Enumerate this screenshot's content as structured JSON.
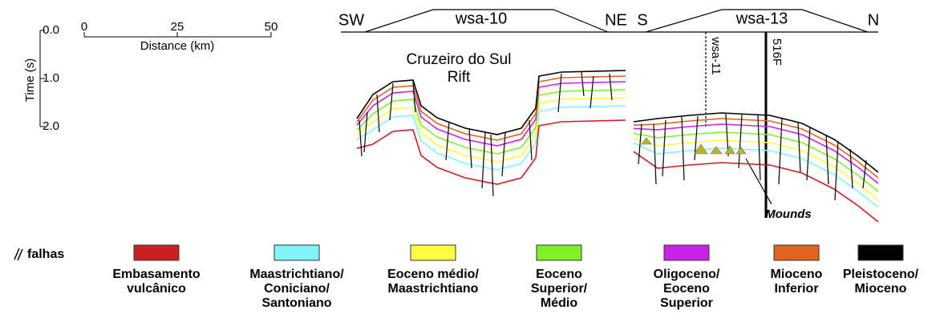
{
  "time_scale": {
    "label": "Time (s)",
    "ticks": [
      "0.0",
      "1.0",
      "2.0"
    ]
  },
  "distance_scale": {
    "label": "Distance (km)",
    "ticks": [
      "0",
      "25",
      "50"
    ]
  },
  "sections": [
    {
      "name": "wsa-10",
      "start": "SW",
      "end": "NE"
    },
    {
      "name": "wsa-13",
      "start": "S",
      "end": "N"
    }
  ],
  "wells": [
    "wsa-11",
    "516F"
  ],
  "annotations": {
    "rift": [
      "Cruzeiro do Sul",
      "Rift"
    ],
    "mounds": "Mounds"
  },
  "legend": {
    "faults": "falhas",
    "items": [
      {
        "color": "#cc1f1f",
        "label": [
          "Embasamento",
          "vulcânico"
        ]
      },
      {
        "color": "#80f4f8",
        "label": [
          "Maastrichtiano/",
          "Coniciano/",
          "Santoniano"
        ]
      },
      {
        "color": "#ffff40",
        "label": [
          "Eoceno médio/",
          "Maastrichtiano"
        ]
      },
      {
        "color": "#7ef02a",
        "label": [
          "Eoceno",
          "Superior/",
          "Médio"
        ]
      },
      {
        "color": "#cc22e8",
        "label": [
          "Oligoceno/",
          "Eoceno",
          "Superior"
        ]
      },
      {
        "color": "#e0641e",
        "label": [
          "Mioceno",
          "Inferior"
        ]
      },
      {
        "color": "#000000",
        "label": [
          "Pleistoceno/",
          "Mioceno"
        ]
      }
    ]
  }
}
